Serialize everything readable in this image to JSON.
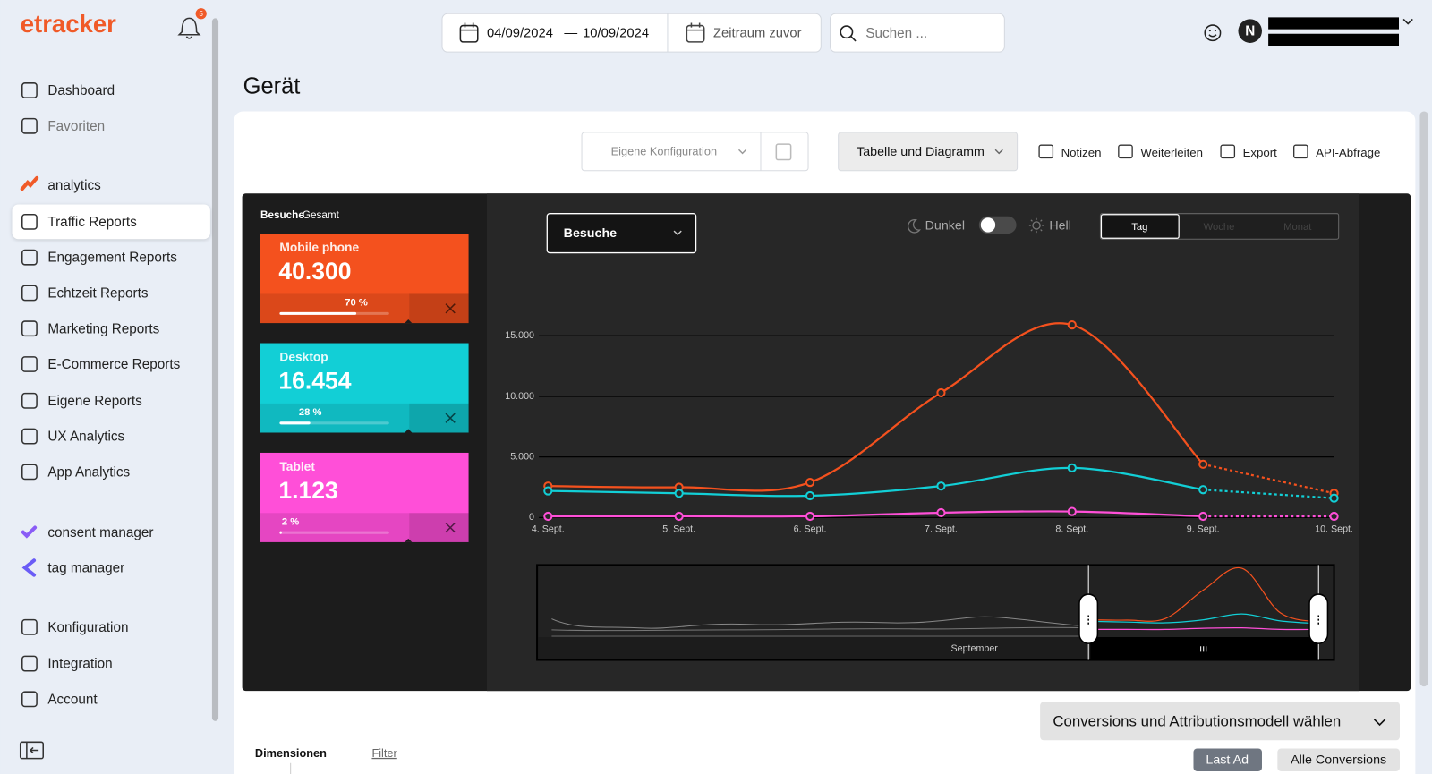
{
  "sidebar": {
    "logo": "etracker",
    "notifications": "5",
    "nav": [
      "Dashboard",
      "Favoriten",
      "analytics",
      "Traffic Reports",
      "Engagement Reports",
      "Echtzeit Reports",
      "Marketing Reports",
      "E-Commerce Reports",
      "Eigene Reports",
      "UX Analytics",
      "App Analytics",
      "consent manager",
      "tag manager",
      "Konfiguration",
      "Integration",
      "Account"
    ],
    "active": "Traffic Reports"
  },
  "header": {
    "date_from": "04/09/2024",
    "date_sep": "—",
    "date_to": "10/09/2024",
    "compare": "Zeitraum zuvor",
    "search_placeholder": "Suchen ...",
    "avatar": "N"
  },
  "page_title": "Gerät",
  "toolbar": {
    "config": "Eigene Konfiguration",
    "view": "Tabelle und Diagramm",
    "actions": [
      "Notizen",
      "Weiterleiten",
      "Export",
      "API-Abfrage"
    ]
  },
  "summary": {
    "metric": "Besuche",
    "scope": "Gesamt"
  },
  "chart_data": {
    "type": "line",
    "metric_select": "Besuche",
    "theme_dark": "Dunkel",
    "theme_light": "Hell",
    "intervals": [
      "Tag",
      "Woche",
      "Monat"
    ],
    "active_interval": "Tag",
    "x": [
      "4. Sept.",
      "5. Sept.",
      "6. Sept.",
      "7. Sept.",
      "8. Sept.",
      "9. Sept.",
      "10. Sept."
    ],
    "series": [
      {
        "name": "Mobile phone",
        "color": "#f4511e",
        "values": [
          2600,
          2500,
          2900,
          10300,
          15900,
          4400,
          2000
        ],
        "total": {
          "value": 40300,
          "label": "40.300"
        },
        "share": {
          "value": 70,
          "label": "70 %"
        }
      },
      {
        "name": "Desktop",
        "color": "#12cfd6",
        "values": [
          2200,
          2000,
          1800,
          2600,
          4100,
          2300,
          1600
        ],
        "total": {
          "value": 16454,
          "label": "16.454"
        },
        "share": {
          "value": 28,
          "label": "28 %"
        }
      },
      {
        "name": "Tablet",
        "color": "#ff4fd8",
        "values": [
          100,
          100,
          100,
          400,
          500,
          100,
          100
        ],
        "total": {
          "value": 1123,
          "label": "1.123"
        },
        "share": {
          "value": 2,
          "label": "2 %"
        }
      }
    ],
    "ylim": [
      0,
      16500
    ],
    "yticks": [
      0,
      {
        "value": 5000,
        "label": "5.000"
      },
      {
        "value": 10000,
        "label": "10.000"
      },
      {
        "value": 15000,
        "label": "15.000"
      }
    ],
    "grid": true,
    "navigator_label": "September"
  },
  "footer": {
    "conversions_button": "Conversions und Attributionsmodell wählen",
    "tabs": [
      "Dimensionen",
      "Filter"
    ],
    "attribution": [
      "Last Ad",
      "Alle Conversions"
    ]
  }
}
